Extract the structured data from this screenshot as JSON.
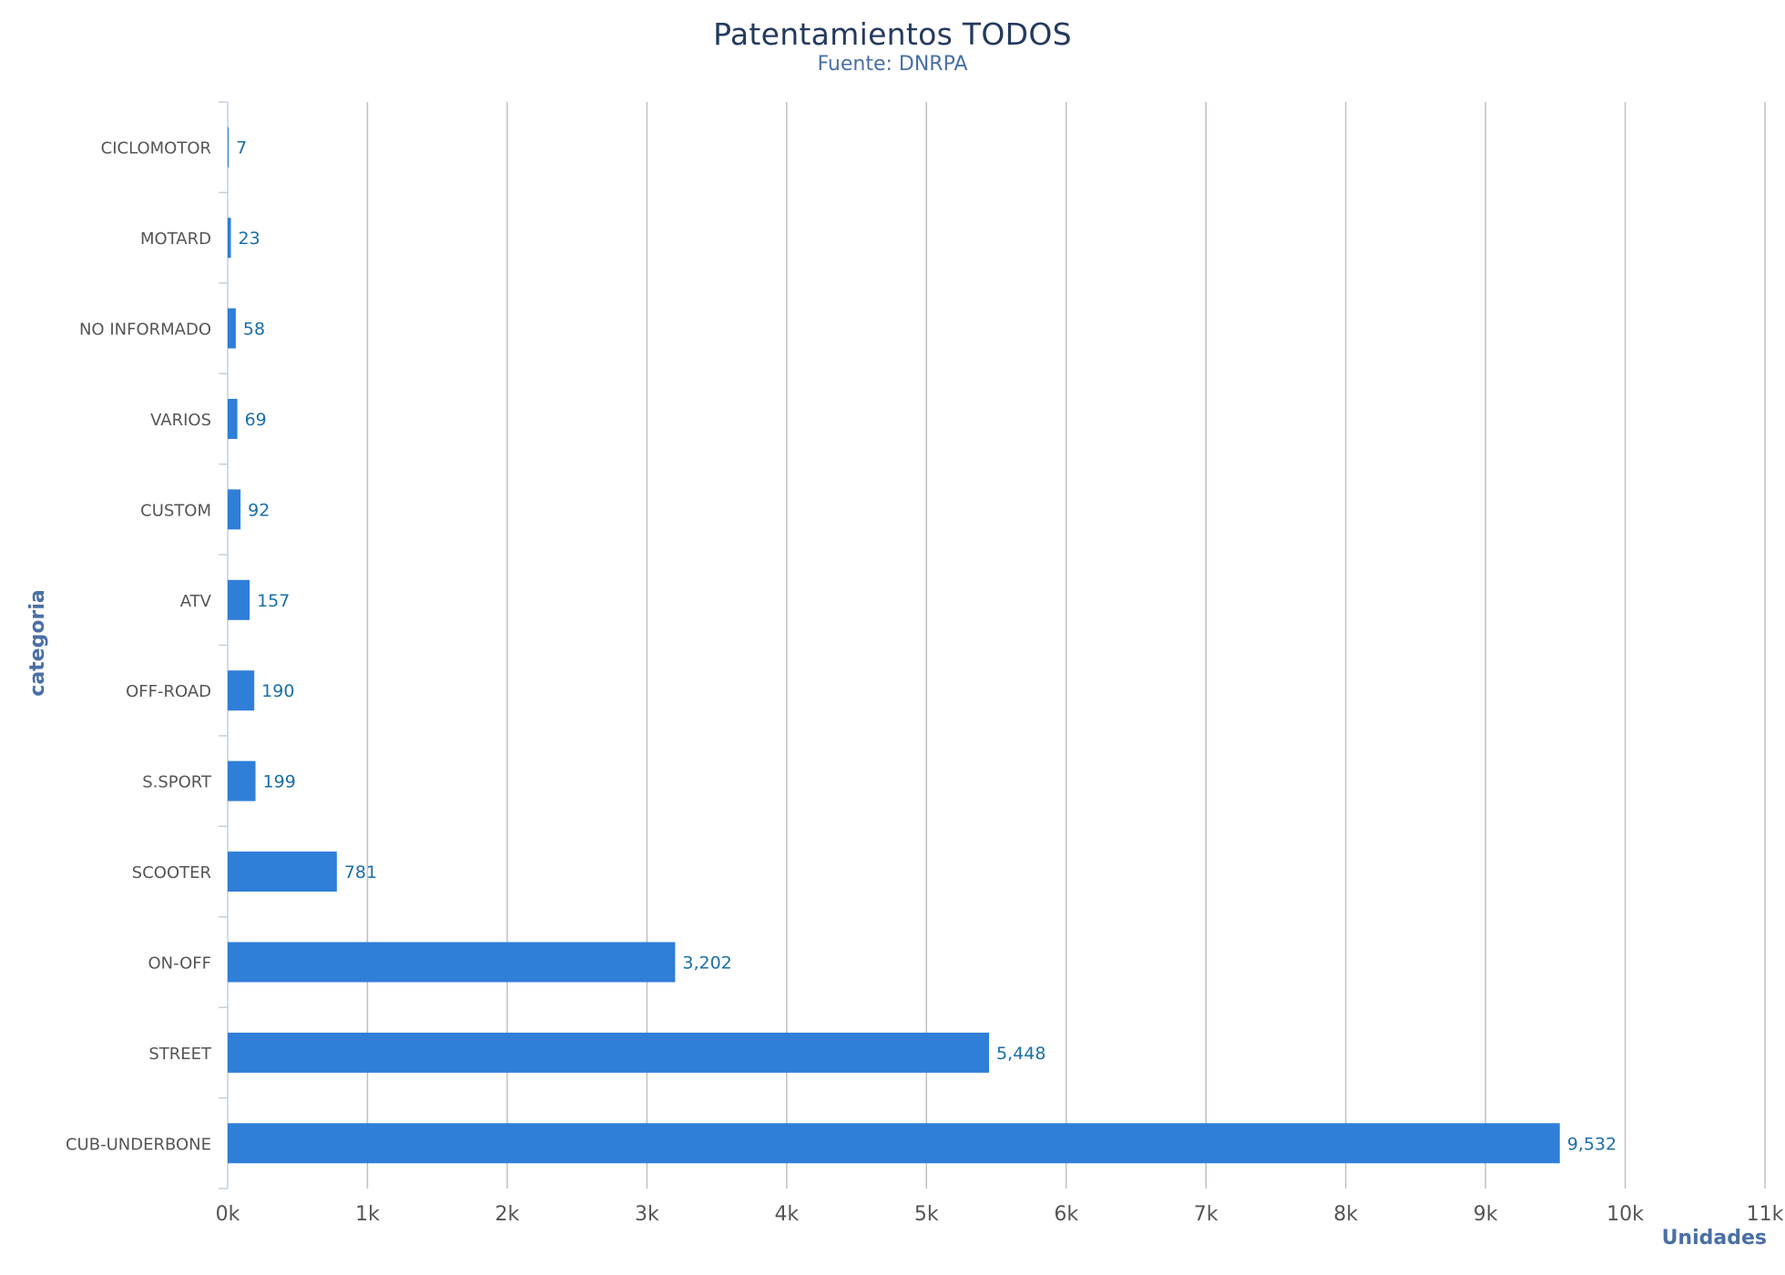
{
  "chart_data": {
    "type": "bar",
    "orientation": "horizontal",
    "title": "Patentamientos TODOS",
    "subtitle": "Fuente: DNRPA",
    "xlabel": "Unidades",
    "ylabel": "categoria",
    "categories": [
      "CICLOMOTOR",
      "MOTARD",
      "NO INFORMADO",
      "VARIOS",
      "CUSTOM",
      "ATV",
      "OFF-ROAD",
      "S.SPORT",
      "SCOOTER",
      "ON-OFF",
      "STREET",
      "CUB-UNDERBONE"
    ],
    "values": [
      7,
      23,
      58,
      69,
      92,
      157,
      190,
      199,
      781,
      3202,
      5448,
      9532
    ],
    "value_labels": [
      "7",
      "23",
      "58",
      "69",
      "92",
      "157",
      "190",
      "199",
      "781",
      "3,202",
      "5,448",
      "9,532"
    ],
    "xlim": [
      0,
      11000
    ],
    "xticks": [
      0,
      1000,
      2000,
      3000,
      4000,
      5000,
      6000,
      7000,
      8000,
      9000,
      10000,
      11000
    ],
    "xtick_labels": [
      "0k",
      "1k",
      "2k",
      "3k",
      "4k",
      "5k",
      "6k",
      "7k",
      "8k",
      "9k",
      "10k",
      "11k"
    ],
    "grid": true,
    "legend": "none",
    "colors": {
      "bar": "#2f7ed8",
      "data_label": "#1a6fa8",
      "title": "#243a5e",
      "axis_title": "#4a6fa5",
      "grid": "#c0c0c0"
    }
  }
}
